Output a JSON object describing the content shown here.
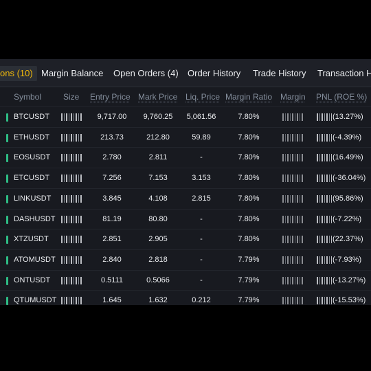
{
  "tabs": [
    {
      "label": "ons (10)",
      "active": true
    },
    {
      "label": "Margin Balance",
      "active": false
    },
    {
      "label": "Open Orders (4)",
      "active": false
    },
    {
      "label": "Order History",
      "active": false
    },
    {
      "label": "Trade History",
      "active": false
    },
    {
      "label": "Transaction Hi",
      "active": false
    }
  ],
  "columns": {
    "symbol": "Symbol",
    "size": "Size",
    "entry_price": "Entry Price",
    "mark_price": "Mark Price",
    "liq_price": "Liq. Price",
    "margin_ratio": "Margin Ratio",
    "margin": "Margin",
    "pnl": "PNL (ROE %)"
  },
  "rows": [
    {
      "symbol": "BTCUSDT",
      "entry": "9,717.00",
      "mark": "9,760.25",
      "liq": "5,061.56",
      "ratio": "7.80%",
      "pnl": "(13.27%)"
    },
    {
      "symbol": "ETHUSDT",
      "entry": "213.73",
      "mark": "212.80",
      "liq": "59.89",
      "ratio": "7.80%",
      "pnl": "(-4.39%)"
    },
    {
      "symbol": "EOSUSDT",
      "entry": "2.780",
      "mark": "2.811",
      "liq": "-",
      "ratio": "7.80%",
      "pnl": "(16.49%)"
    },
    {
      "symbol": "ETCUSDT",
      "entry": "7.256",
      "mark": "7.153",
      "liq": "3.153",
      "ratio": "7.80%",
      "pnl": "(-36.04%)"
    },
    {
      "symbol": "LINKUSDT",
      "entry": "3.845",
      "mark": "4.108",
      "liq": "2.815",
      "ratio": "7.80%",
      "pnl": "(95.86%)"
    },
    {
      "symbol": "DASHUSDT",
      "entry": "81.19",
      "mark": "80.80",
      "liq": "-",
      "ratio": "7.80%",
      "pnl": "(-7.22%)"
    },
    {
      "symbol": "XTZUSDT",
      "entry": "2.851",
      "mark": "2.905",
      "liq": "-",
      "ratio": "7.80%",
      "pnl": "(22.37%)"
    },
    {
      "symbol": "ATOMUSDT",
      "entry": "2.840",
      "mark": "2.818",
      "liq": "-",
      "ratio": "7.79%",
      "pnl": "(-7.93%)"
    },
    {
      "symbol": "ONTUSDT",
      "entry": "0.5111",
      "mark": "0.5066",
      "liq": "-",
      "ratio": "7.79%",
      "pnl": "(-13.27%)"
    },
    {
      "symbol": "QTUMUSDT",
      "entry": "1.645",
      "mark": "1.632",
      "liq": "0.212",
      "ratio": "7.79%",
      "pnl": "(-15.53%)"
    }
  ],
  "colors": {
    "accent": "#f0b90b",
    "positive": "#2ebd85",
    "background": "#181a20",
    "text": "#eaecef",
    "muted": "#848e9c"
  }
}
